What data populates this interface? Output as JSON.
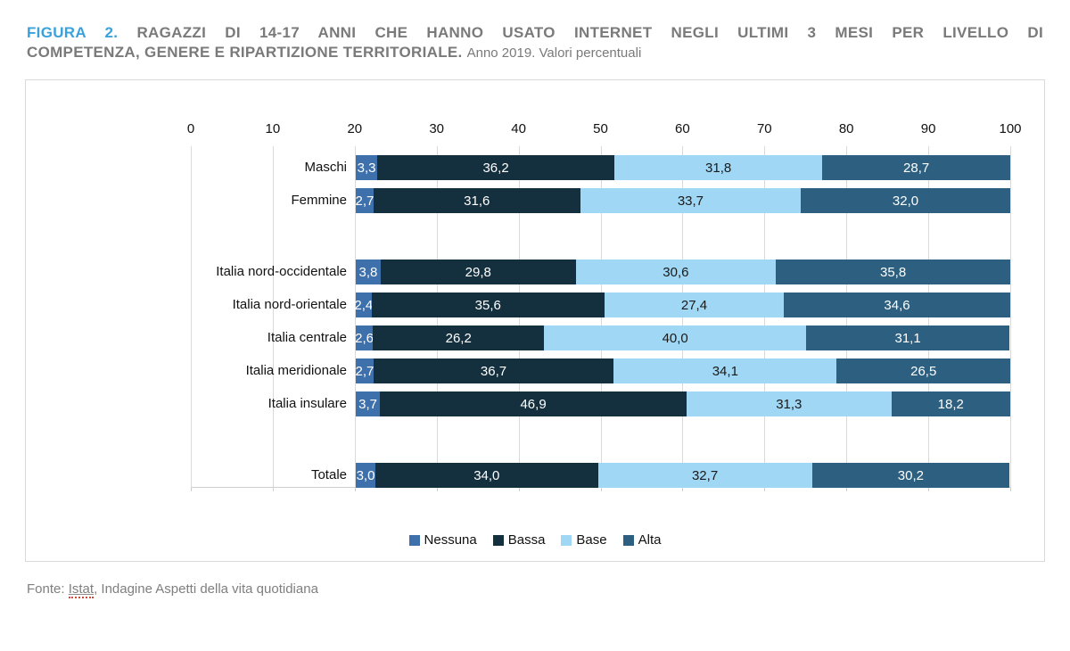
{
  "title": {
    "figura": "FIGURA 2.",
    "line1": "RAGAZZI DI 14-17 ANNI CHE HANNO USATO INTERNET NEGLI ULTIMI 3 MESI PER LIVELLO DI",
    "line2_bold": "COMPETENZA, GENERE E RIPARTIZIONE TERRITORIALE.",
    "subtitle": "Anno 2019. Valori percentuali"
  },
  "footer": {
    "prefix": "Fonte: ",
    "link": "Istat",
    "rest": ", Indagine Aspetti della vita quotidiana"
  },
  "colors": {
    "title_accent": "#3aa1dc",
    "title_gray": "#7a7a7a",
    "gridline": "#d9d9d9",
    "card_border": "#d9d9d9"
  },
  "chart_data": {
    "type": "bar",
    "orientation": "horizontal-stacked",
    "title": "Ragazzi di 14-17 anni che hanno usato internet negli ultimi 3 mesi per livello di competenza, genere e ripartizione territoriale",
    "xlabel": "",
    "ylabel": "",
    "xlim": [
      0,
      100
    ],
    "x_ticks": [
      0,
      10,
      20,
      30,
      40,
      50,
      60,
      70,
      80,
      90,
      100
    ],
    "grid": true,
    "legend_position": "bottom",
    "series_names": [
      "Nessuna",
      "Bassa",
      "Base",
      "Alta"
    ],
    "series_colors": [
      "#3e70ac",
      "#14303f",
      "#9fd7f4",
      "#2c5f80"
    ],
    "series_text_colors": [
      "#ffffff",
      "#ffffff",
      "#1a1a1a",
      "#ffffff"
    ],
    "rows": [
      {
        "label": "Maschi",
        "values": [
          3.3,
          36.2,
          31.8,
          28.7
        ]
      },
      {
        "label": "Femmine",
        "values": [
          2.7,
          31.6,
          33.7,
          32.0
        ]
      },
      {
        "spacer": true
      },
      {
        "label": "Italia nord-occidentale",
        "values": [
          3.8,
          29.8,
          30.6,
          35.8
        ]
      },
      {
        "label": "Italia nord-orientale",
        "values": [
          2.4,
          35.6,
          27.4,
          34.6
        ]
      },
      {
        "label": "Italia centrale",
        "values": [
          2.6,
          26.2,
          40.0,
          31.1
        ]
      },
      {
        "label": "Italia meridionale",
        "values": [
          2.7,
          36.7,
          34.1,
          26.5
        ]
      },
      {
        "label": "Italia insulare",
        "values": [
          3.7,
          46.9,
          31.3,
          18.2
        ]
      },
      {
        "spacer": true
      },
      {
        "label": "Totale",
        "values": [
          3.0,
          34.0,
          32.7,
          30.2
        ]
      }
    ]
  }
}
